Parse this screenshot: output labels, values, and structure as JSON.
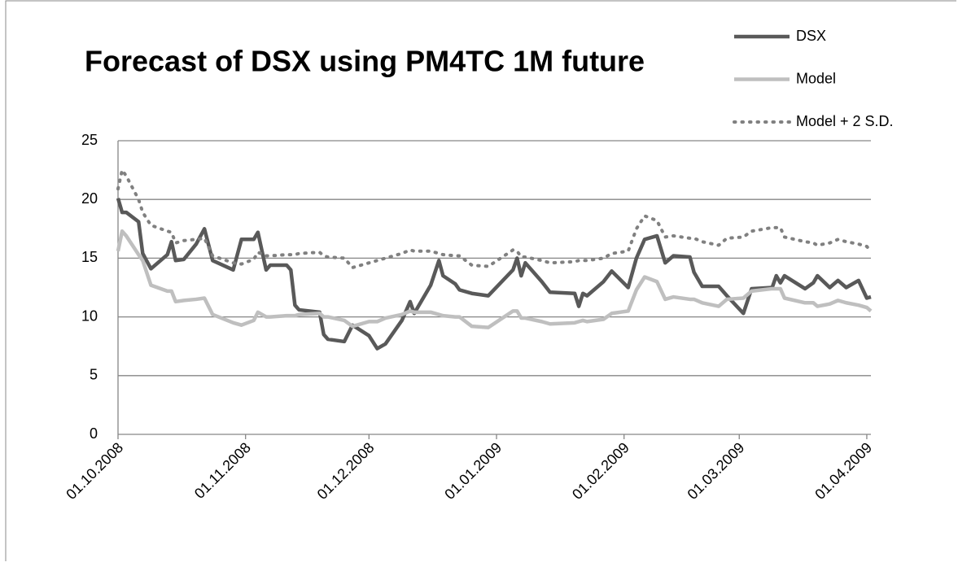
{
  "chart_data": {
    "type": "line",
    "title": "Forecast of DSX using PM4TC 1M future",
    "x": [
      "2008-10-01",
      "2008-10-02",
      "2008-10-03",
      "2008-10-06",
      "2008-10-07",
      "2008-10-09",
      "2008-10-13",
      "2008-10-14",
      "2008-10-15",
      "2008-10-17",
      "2008-10-20",
      "2008-10-22",
      "2008-10-24",
      "2008-10-29",
      "2008-10-31",
      "2008-11-03",
      "2008-11-04",
      "2008-11-06",
      "2008-11-07",
      "2008-11-11",
      "2008-11-12",
      "2008-11-13",
      "2008-11-14",
      "2008-11-19",
      "2008-11-20",
      "2008-11-21",
      "2008-11-25",
      "2008-11-27",
      "2008-12-01",
      "2008-12-03",
      "2008-12-05",
      "2008-12-09",
      "2008-12-11",
      "2008-12-12",
      "2008-12-16",
      "2008-12-18",
      "2008-12-19",
      "2008-12-22",
      "2008-12-23",
      "2008-12-26",
      "2008-12-30",
      "2009-01-05",
      "2009-01-06",
      "2009-01-07",
      "2009-01-08",
      "2009-01-12",
      "2009-01-14",
      "2009-01-20",
      "2009-01-21",
      "2009-01-22",
      "2009-01-23",
      "2009-01-27",
      "2009-01-29",
      "2009-02-02",
      "2009-02-04",
      "2009-02-06",
      "2009-02-09",
      "2009-02-11",
      "2009-02-13",
      "2009-02-17",
      "2009-02-18",
      "2009-02-20",
      "2009-02-24",
      "2009-02-26",
      "2009-03-02",
      "2009-03-04",
      "2009-03-09",
      "2009-03-10",
      "2009-03-11",
      "2009-03-12",
      "2009-03-17",
      "2009-03-19",
      "2009-03-20",
      "2009-03-23",
      "2009-03-25",
      "2009-03-27",
      "2009-03-30",
      "2009-04-01",
      "2009-04-02"
    ],
    "series": [
      {
        "name": "DSX",
        "color": "#595959",
        "line_style": "solid",
        "values": [
          20.1,
          18.9,
          18.9,
          18.1,
          15.4,
          14.1,
          15.3,
          16.4,
          14.8,
          14.9,
          16.2,
          17.5,
          14.8,
          14.0,
          16.6,
          16.6,
          17.2,
          14.0,
          14.4,
          14.4,
          14.0,
          11.0,
          10.6,
          10.4,
          8.5,
          8.1,
          7.9,
          9.3,
          8.4,
          7.3,
          7.7,
          9.7,
          11.3,
          10.3,
          12.7,
          14.8,
          13.5,
          12.8,
          12.3,
          12.0,
          11.8,
          14.0,
          15.0,
          13.5,
          14.6,
          13.0,
          12.1,
          12.0,
          10.9,
          12.0,
          11.8,
          13.0,
          13.9,
          12.5,
          15.0,
          16.6,
          16.9,
          14.6,
          15.2,
          15.1,
          13.8,
          12.6,
          12.6,
          11.8,
          10.3,
          12.4,
          12.5,
          13.5,
          12.9,
          13.5,
          12.4,
          12.9,
          13.5,
          12.5,
          13.1,
          12.5,
          13.1,
          11.6,
          11.7
        ]
      },
      {
        "name": "Model",
        "color": "#bfbfbf",
        "line_style": "solid",
        "values": [
          15.6,
          17.3,
          16.9,
          15.3,
          14.8,
          12.7,
          12.2,
          12.2,
          11.3,
          11.4,
          11.5,
          11.6,
          10.2,
          9.5,
          9.3,
          9.7,
          10.4,
          10.0,
          10.0,
          10.1,
          10.1,
          10.1,
          10.2,
          10.3,
          10.0,
          10.0,
          9.7,
          9.2,
          9.6,
          9.6,
          9.9,
          10.2,
          10.5,
          10.4,
          10.4,
          10.2,
          10.1,
          10.0,
          10.0,
          9.2,
          9.1,
          10.5,
          10.5,
          9.9,
          9.9,
          9.6,
          9.4,
          9.5,
          9.6,
          9.7,
          9.6,
          9.8,
          10.3,
          10.5,
          12.3,
          13.4,
          13.0,
          11.5,
          11.7,
          11.5,
          11.5,
          11.2,
          10.9,
          11.5,
          11.6,
          12.2,
          12.4,
          12.4,
          12.4,
          11.6,
          11.2,
          11.2,
          10.9,
          11.1,
          11.4,
          11.2,
          11.0,
          10.8,
          10.5
        ]
      },
      {
        "name": "Model + 2 S.D.",
        "color": "#808080",
        "line_style": "dotted",
        "values": [
          20.9,
          22.5,
          22.0,
          20.0,
          18.9,
          17.8,
          17.3,
          17.2,
          16.3,
          16.5,
          16.6,
          16.7,
          15.2,
          14.6,
          14.5,
          14.9,
          15.5,
          15.2,
          15.2,
          15.3,
          15.3,
          15.3,
          15.4,
          15.5,
          15.2,
          15.1,
          15.0,
          14.2,
          14.6,
          14.8,
          15.0,
          15.4,
          15.7,
          15.6,
          15.6,
          15.4,
          15.3,
          15.2,
          15.2,
          14.4,
          14.3,
          15.7,
          15.6,
          15.1,
          15.1,
          14.8,
          14.6,
          14.7,
          14.8,
          14.8,
          14.8,
          15.0,
          15.4,
          15.6,
          17.5,
          18.6,
          18.2,
          16.8,
          16.9,
          16.7,
          16.7,
          16.4,
          16.1,
          16.7,
          16.8,
          17.3,
          17.6,
          17.6,
          17.6,
          16.8,
          16.4,
          16.3,
          16.1,
          16.3,
          16.6,
          16.4,
          16.2,
          16.0,
          15.6
        ]
      }
    ],
    "xlim": [
      "2008-10-01",
      "2009-04-02"
    ],
    "xticks": [
      {
        "value": "2008-10-01",
        "label": "01.10.2008"
      },
      {
        "value": "2008-11-01",
        "label": "01.11.2008"
      },
      {
        "value": "2008-12-01",
        "label": "01.12.2008"
      },
      {
        "value": "2009-01-01",
        "label": "01.01.2009"
      },
      {
        "value": "2009-02-01",
        "label": "01.02.2009"
      },
      {
        "value": "2009-03-01",
        "label": "01.03.2009"
      },
      {
        "value": "2009-04-01",
        "label": "01.04.2009"
      }
    ],
    "ylim": [
      0,
      25
    ],
    "yticks": [
      0,
      5,
      10,
      15,
      20,
      25
    ],
    "grid": true,
    "legend": "top-right"
  }
}
